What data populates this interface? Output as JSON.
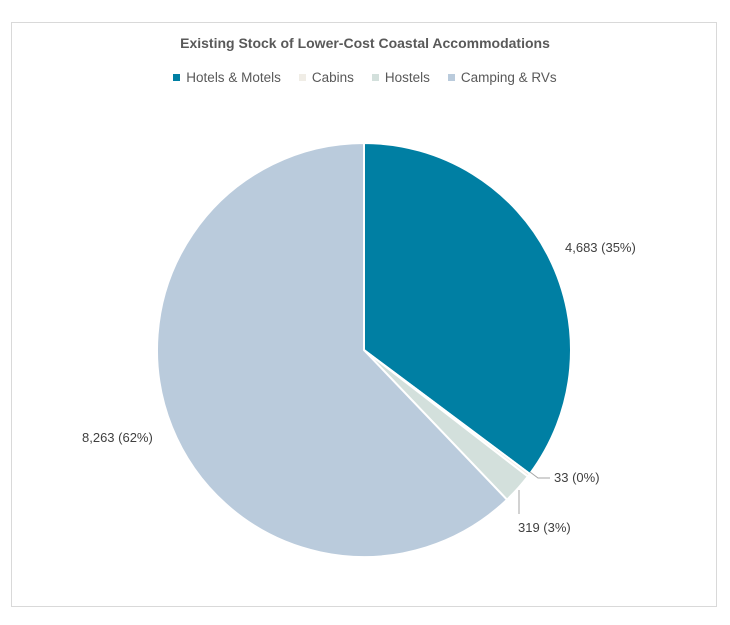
{
  "chart_data": {
    "type": "pie",
    "title": "Existing Stock of Lower-Cost Coastal Accommodations",
    "legend_position": "top",
    "slices": [
      {
        "name": "Hotels & Motels",
        "value": 4683,
        "label": "4,683 (35%)",
        "color": "#007fa3"
      },
      {
        "name": "Cabins",
        "value": 33,
        "label": "33 (0%)",
        "color": "#f0ede6"
      },
      {
        "name": "Hostels",
        "value": 319,
        "label": "319 (3%)",
        "color": "#d3e0dc"
      },
      {
        "name": "Camping & RVs",
        "value": 8263,
        "label": "8,263 (62%)",
        "color": "#bacbdc"
      }
    ]
  }
}
